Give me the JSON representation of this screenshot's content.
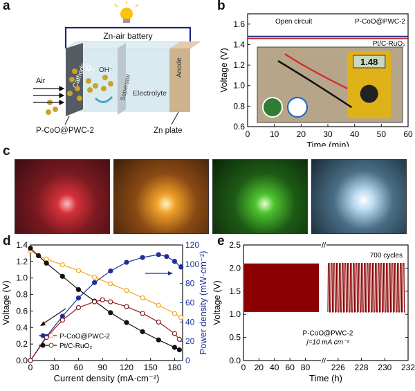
{
  "panel_labels": {
    "a": "a",
    "b": "b",
    "c": "c",
    "d": "d",
    "e": "e"
  },
  "panel_a": {
    "battery_title": "Zn-air battery",
    "cathode": "Cathode",
    "o2": "O₂",
    "oh": "OH⁻",
    "separator": "Seperator",
    "electrolyte": "Electrolyte",
    "anode": "Anode",
    "air": "Air",
    "catalyst": "P-CoO@PWC-2",
    "zn_plate": "Zn plate"
  },
  "panel_c": {
    "photos": [
      {
        "glow": "red"
      },
      {
        "glow": "orange"
      },
      {
        "glow": "green"
      },
      {
        "glow": "white-blue"
      }
    ]
  },
  "chart_data": [
    {
      "type": "line",
      "panel": "b",
      "xlabel": "Time (min)",
      "ylabel": "Voltage (V)",
      "xlim": [
        0,
        60
      ],
      "ylim": [
        0.6,
        1.7
      ],
      "xticks": [
        0,
        10,
        20,
        30,
        40,
        50,
        60
      ],
      "yticks": [
        0.6,
        0.8,
        1.0,
        1.2,
        1.4,
        1.6
      ],
      "annotation": "Open circuit",
      "inset_readout": "1.48",
      "series": [
        {
          "name": "P-CoO@PWC-2",
          "color": "#1a237e",
          "x": [
            0,
            60
          ],
          "y": [
            1.48,
            1.48
          ]
        },
        {
          "name": "Pt/C-RuO₂",
          "color": "#c62828",
          "x": [
            0,
            60
          ],
          "y": [
            1.46,
            1.46
          ]
        }
      ]
    },
    {
      "type": "line",
      "panel": "d",
      "xlabel": "Current density (mA·cm⁻²)",
      "ylabel": "Voltage (V)",
      "y2label": "Power density (mW·cm⁻²)",
      "xlim": [
        0,
        190
      ],
      "ylim": [
        0,
        1.4
      ],
      "y2lim": [
        0,
        120
      ],
      "xticks": [
        0,
        30,
        60,
        90,
        120,
        150,
        180
      ],
      "yticks": [
        0.0,
        0.2,
        0.4,
        0.6,
        0.8,
        1.0,
        1.2,
        1.4
      ],
      "y2ticks": [
        0,
        20,
        40,
        60,
        80,
        100,
        120
      ],
      "series": [
        {
          "name": "P-CoO@PWC-2 voltage",
          "axis": "left",
          "color": "#f5a623",
          "marker": "open",
          "x": [
            0,
            10,
            20,
            40,
            60,
            80,
            100,
            120,
            140,
            160,
            180,
            188
          ],
          "y": [
            1.33,
            1.27,
            1.23,
            1.16,
            1.09,
            1.01,
            0.93,
            0.85,
            0.76,
            0.67,
            0.57,
            0.52
          ]
        },
        {
          "name": "P-CoO@PWC-2 power",
          "axis": "right",
          "color": "#1f2f9a",
          "marker": "filled",
          "x": [
            0,
            20,
            40,
            60,
            80,
            100,
            120,
            140,
            160,
            170,
            180,
            188
          ],
          "y": [
            0,
            25,
            46,
            65,
            81,
            93,
            102,
            107,
            110,
            108,
            103,
            97
          ]
        },
        {
          "name": "Pt/C-RuO₂ voltage",
          "axis": "left",
          "color": "#111111",
          "marker": "filled",
          "x": [
            0,
            10,
            20,
            40,
            60,
            80,
            100,
            120,
            140,
            160,
            180,
            186
          ],
          "y": [
            1.36,
            1.27,
            1.18,
            1.02,
            0.86,
            0.72,
            0.58,
            0.46,
            0.35,
            0.25,
            0.16,
            0.13
          ]
        },
        {
          "name": "Pt/C-RuO₂ power",
          "axis": "right",
          "color": "#8b1a1a",
          "marker": "open",
          "x": [
            0,
            20,
            40,
            60,
            80,
            90,
            100,
            120,
            140,
            160,
            180,
            186
          ],
          "y": [
            0,
            24,
            42,
            55,
            61,
            63,
            61,
            56,
            49,
            40,
            28,
            22
          ]
        }
      ],
      "legend": [
        "P-CoO@PWC-2",
        "Pt/C-RuO₂"
      ]
    },
    {
      "type": "line",
      "panel": "e",
      "xlabel": "Time (h)",
      "ylabel": "Voltage (V)",
      "ylim": [
        0.0,
        2.5
      ],
      "yticks": [
        0.0,
        0.5,
        1.0,
        1.5,
        2.0,
        2.5
      ],
      "left_segment": {
        "xlim": [
          0,
          100
        ],
        "xticks": [
          0,
          20,
          40,
          60,
          80
        ]
      },
      "right_segment": {
        "xlim": [
          225,
          232
        ],
        "xticks": [
          226,
          228,
          230,
          232
        ]
      },
      "annotation": "700 cycles",
      "sample_label": "P-CoO@PWC-2",
      "condition_label": "j=10 mA cm⁻²",
      "series": [
        {
          "name": "charge-discharge",
          "color": "#8b0000",
          "charge_voltage": 2.1,
          "discharge_voltage": 1.05,
          "right_cycles": 28
        }
      ]
    }
  ]
}
